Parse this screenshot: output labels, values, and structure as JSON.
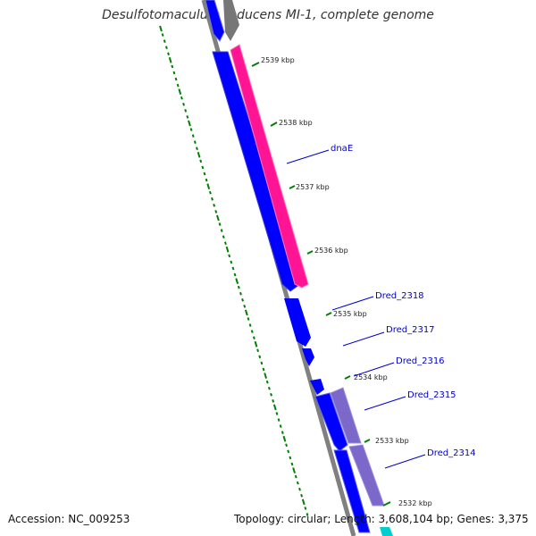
{
  "title": "Desulfotomaculum reducens MI-1, complete genome",
  "accession": {
    "label": "Accession:",
    "value": "NC_009253"
  },
  "topology": {
    "label": "Topology:",
    "value": "circular"
  },
  "length": {
    "label": "Length:",
    "value": "3,608,104 bp"
  },
  "genes": {
    "label": "Genes:",
    "value": "3,375"
  },
  "colors": {
    "forward_cds": "#0000ff",
    "reverse_cds": "#ff1493",
    "reverse_cds_secondary": "#7b68c8",
    "backbone": "#808080",
    "gc_skew_ticks": "#008000",
    "label_text": "#0000cc",
    "tick_text": "#222222",
    "cyan_feature": "#00ced1"
  },
  "ticks": [
    "2539 kbp",
    "2538 kbp",
    "2537 kbp",
    "2536 kbp",
    "2535 kbp",
    "2534 kbp",
    "2533 kbp",
    "2532 kbp"
  ],
  "gene_labels": [
    "dnaE",
    "Dred_2318",
    "Dred_2317",
    "Dred_2316",
    "Dred_2315",
    "Dred_2314"
  ]
}
